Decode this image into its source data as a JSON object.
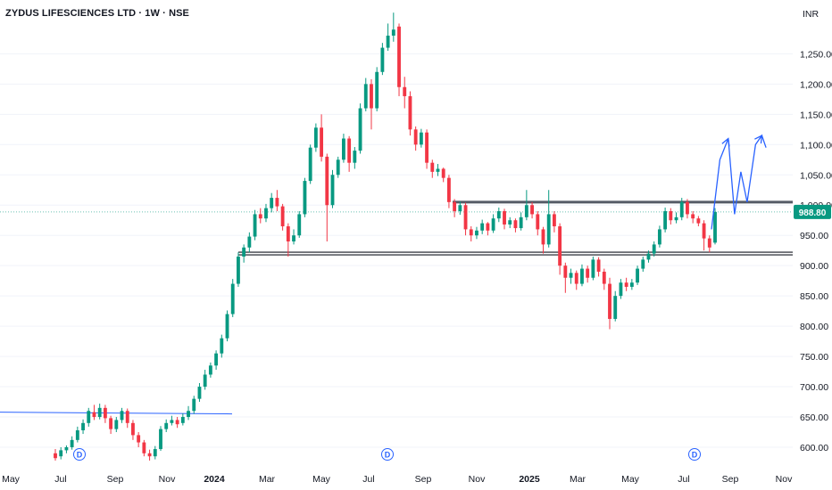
{
  "header": {
    "title": "ZYDUS LIFESCIENCES LTD · 1W · NSE",
    "currency": "INR"
  },
  "colors": {
    "up": "#089981",
    "down": "#f23645",
    "level_line": "#131722",
    "trend_line": "#2962ff",
    "projection": "#2962ff",
    "price_badge": "#089981",
    "grid": "#f0f3fa"
  },
  "chart_data": {
    "type": "candlestick",
    "interval": "1W",
    "y_axis": {
      "ticks": [
        "600.00",
        "650.00",
        "700.00",
        "750.00",
        "800.00",
        "850.00",
        "900.00",
        "950.00",
        "1,000.00",
        "1,050.00",
        "1,100.00",
        "1,150.00",
        "1,200.00",
        "1,250.00"
      ],
      "tick_values": [
        600,
        650,
        700,
        750,
        800,
        850,
        900,
        950,
        1000,
        1050,
        1100,
        1150,
        1200,
        1250
      ],
      "range": [
        580,
        1320
      ]
    },
    "x_axis": {
      "labels": [
        {
          "text": "May",
          "bold": false
        },
        {
          "text": "Jul",
          "bold": false
        },
        {
          "text": "Sep",
          "bold": false
        },
        {
          "text": "Nov",
          "bold": false
        },
        {
          "text": "2024",
          "bold": true
        },
        {
          "text": "Mar",
          "bold": false
        },
        {
          "text": "May",
          "bold": false
        },
        {
          "text": "Jul",
          "bold": false
        },
        {
          "text": "Sep",
          "bold": false
        },
        {
          "text": "Nov",
          "bold": false
        },
        {
          "text": "2025",
          "bold": true
        },
        {
          "text": "Mar",
          "bold": false
        },
        {
          "text": "May",
          "bold": false
        },
        {
          "text": "Jul",
          "bold": false
        },
        {
          "text": "Sep",
          "bold": false
        },
        {
          "text": "Nov",
          "bold": false
        }
      ]
    },
    "last_price": "988.80",
    "last_price_value": 988.8,
    "support_level": 920,
    "resistance_level": 1005,
    "trend_line_level": 658,
    "dividend_marker": "D",
    "candles": [
      [
        590,
        582,
        597,
        578
      ],
      [
        585,
        595,
        600,
        580
      ],
      [
        595,
        600,
        603,
        590
      ],
      [
        600,
        612,
        618,
        596
      ],
      [
        612,
        628,
        634,
        608
      ],
      [
        628,
        640,
        646,
        622
      ],
      [
        640,
        660,
        665,
        634
      ],
      [
        658,
        650,
        670,
        645
      ],
      [
        650,
        665,
        672,
        646
      ],
      [
        665,
        648,
        670,
        640
      ],
      [
        648,
        630,
        652,
        622
      ],
      [
        630,
        645,
        650,
        625
      ],
      [
        645,
        660,
        665,
        640
      ],
      [
        660,
        640,
        664,
        632
      ],
      [
        640,
        620,
        645,
        612
      ],
      [
        620,
        608,
        625,
        600
      ],
      [
        608,
        590,
        612,
        585
      ],
      [
        590,
        585,
        596,
        578
      ],
      [
        585,
        597,
        602,
        580
      ],
      [
        597,
        630,
        635,
        594
      ],
      [
        630,
        640,
        646,
        625
      ],
      [
        640,
        645,
        652,
        636
      ],
      [
        645,
        638,
        650,
        632
      ],
      [
        640,
        650,
        656,
        636
      ],
      [
        650,
        660,
        668,
        645
      ],
      [
        660,
        680,
        685,
        655
      ],
      [
        680,
        700,
        706,
        675
      ],
      [
        700,
        720,
        728,
        695
      ],
      [
        720,
        735,
        740,
        715
      ],
      [
        735,
        755,
        760,
        728
      ],
      [
        755,
        780,
        786,
        748
      ],
      [
        780,
        820,
        826,
        775
      ],
      [
        820,
        870,
        878,
        815
      ],
      [
        870,
        915,
        922,
        865
      ],
      [
        915,
        930,
        935,
        905
      ],
      [
        930,
        948,
        955,
        922
      ],
      [
        948,
        985,
        992,
        942
      ],
      [
        985,
        978,
        995,
        970
      ],
      [
        978,
        995,
        1002,
        972
      ],
      [
        995,
        1012,
        1020,
        988
      ],
      [
        1012,
        998,
        1025,
        990
      ],
      [
        998,
        965,
        1002,
        958
      ],
      [
        965,
        940,
        970,
        915
      ],
      [
        940,
        950,
        960,
        935
      ],
      [
        950,
        985,
        990,
        946
      ],
      [
        985,
        1040,
        1045,
        980
      ],
      [
        1040,
        1095,
        1100,
        1035
      ],
      [
        1095,
        1128,
        1135,
        1088
      ],
      [
        1128,
        1080,
        1150,
        1072
      ],
      [
        1080,
        1000,
        1085,
        940
      ],
      [
        1000,
        1050,
        1058,
        995
      ],
      [
        1050,
        1075,
        1080,
        1045
      ],
      [
        1075,
        1110,
        1118,
        1070
      ],
      [
        1110,
        1070,
        1114,
        1055
      ],
      [
        1070,
        1090,
        1096,
        1060
      ],
      [
        1090,
        1160,
        1168,
        1085
      ],
      [
        1160,
        1200,
        1210,
        1155
      ],
      [
        1200,
        1160,
        1208,
        1125
      ],
      [
        1160,
        1220,
        1228,
        1155
      ],
      [
        1220,
        1260,
        1268,
        1215
      ],
      [
        1260,
        1280,
        1300,
        1255
      ],
      [
        1280,
        1290,
        1318,
        1270
      ],
      [
        1295,
        1195,
        1300,
        1180
      ],
      [
        1195,
        1180,
        1212,
        1160
      ],
      [
        1180,
        1125,
        1188,
        1115
      ],
      [
        1125,
        1100,
        1130,
        1090
      ],
      [
        1100,
        1120,
        1126,
        1095
      ],
      [
        1120,
        1070,
        1125,
        1060
      ],
      [
        1070,
        1055,
        1075,
        1045
      ],
      [
        1055,
        1060,
        1068,
        1048
      ],
      [
        1060,
        1045,
        1062,
        1038
      ],
      [
        1045,
        1005,
        1050,
        995
      ],
      [
        1005,
        990,
        1010,
        980
      ],
      [
        990,
        1000,
        1006,
        984
      ],
      [
        1000,
        960,
        1004,
        950
      ],
      [
        960,
        950,
        965,
        940
      ],
      [
        950,
        958,
        964,
        944
      ],
      [
        958,
        970,
        976,
        952
      ],
      [
        970,
        958,
        972,
        950
      ],
      [
        958,
        978,
        985,
        954
      ],
      [
        978,
        990,
        996,
        972
      ],
      [
        990,
        968,
        994,
        960
      ],
      [
        968,
        975,
        980,
        962
      ],
      [
        975,
        962,
        978,
        955
      ],
      [
        962,
        980,
        988,
        958
      ],
      [
        980,
        1000,
        1025,
        975
      ],
      [
        1000,
        985,
        1005,
        978
      ],
      [
        985,
        960,
        990,
        950
      ],
      [
        960,
        935,
        964,
        920
      ],
      [
        935,
        985,
        1025,
        930
      ],
      [
        985,
        965,
        990,
        955
      ],
      [
        965,
        900,
        970,
        885
      ],
      [
        900,
        880,
        905,
        855
      ],
      [
        880,
        888,
        895,
        870
      ],
      [
        888,
        870,
        892,
        860
      ],
      [
        870,
        895,
        902,
        866
      ],
      [
        895,
        880,
        900,
        872
      ],
      [
        880,
        910,
        915,
        876
      ],
      [
        910,
        890,
        914,
        882
      ],
      [
        890,
        870,
        895,
        860
      ],
      [
        870,
        812,
        880,
        795
      ],
      [
        812,
        850,
        858,
        808
      ],
      [
        850,
        872,
        878,
        845
      ],
      [
        872,
        865,
        880,
        858
      ],
      [
        865,
        872,
        878,
        860
      ],
      [
        872,
        895,
        900,
        868
      ],
      [
        895,
        910,
        915,
        890
      ],
      [
        910,
        920,
        925,
        905
      ],
      [
        920,
        935,
        940,
        915
      ],
      [
        935,
        960,
        966,
        930
      ],
      [
        960,
        990,
        996,
        955
      ],
      [
        990,
        975,
        995,
        968
      ],
      [
        975,
        980,
        988,
        970
      ],
      [
        980,
        1005,
        1012,
        975
      ],
      [
        1005,
        985,
        1010,
        978
      ],
      [
        985,
        978,
        990,
        970
      ],
      [
        978,
        970,
        982,
        965
      ],
      [
        970,
        945,
        975,
        925
      ],
      [
        945,
        930,
        950,
        922
      ],
      [
        938,
        988.8,
        995,
        935
      ]
    ],
    "projection_path": [
      [
        0,
        960
      ],
      [
        4,
        1075
      ],
      [
        8,
        1110
      ],
      [
        11,
        985
      ],
      [
        14,
        1055
      ],
      [
        17,
        1005
      ],
      [
        21,
        1100
      ],
      [
        24,
        1115
      ],
      [
        26,
        1095
      ]
    ]
  }
}
